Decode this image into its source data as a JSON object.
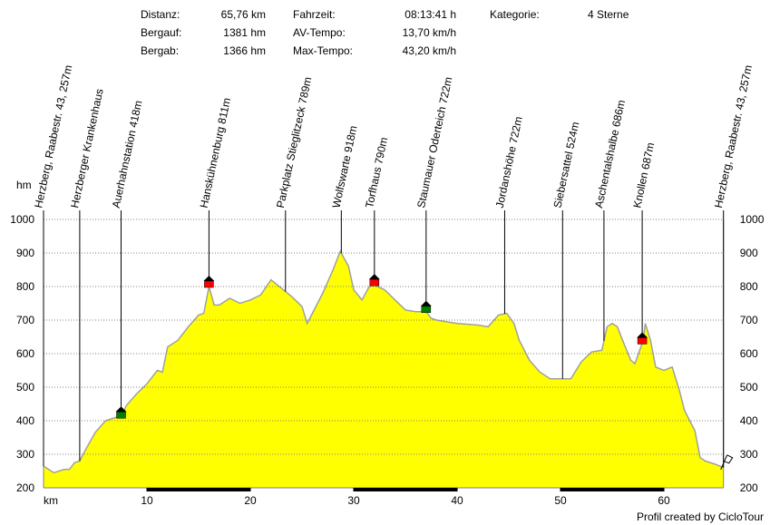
{
  "stats": [
    {
      "label": "Distanz:",
      "value": "65,76 km"
    },
    {
      "label": "Bergauf:",
      "value": "1381 hm"
    },
    {
      "label": "Bergab:",
      "value": "1366 hm"
    },
    {
      "label": "Fahrzeit:",
      "value": "08:13:41 h"
    },
    {
      "label": "AV-Tempo:",
      "value": "13,70 km/h"
    },
    {
      "label": "Max-Tempo:",
      "value": "43,20 km/h"
    },
    {
      "label": "Kategorie:",
      "value": "4 Sterne"
    }
  ],
  "footer": "Profil created by CicloTour",
  "chart_data": {
    "type": "area",
    "color": "#ffff00",
    "y_label": "hm",
    "x_label": "km",
    "xlim": [
      0,
      65.76
    ],
    "ylim": [
      200,
      1000
    ],
    "xticks": [
      10,
      20,
      30,
      40,
      50,
      60
    ],
    "yticks": [
      200,
      300,
      400,
      500,
      600,
      700,
      800,
      900,
      1000
    ],
    "grid": true,
    "x": [
      0,
      1,
      2,
      2.5,
      3,
      3.5,
      4,
      5,
      6,
      7,
      7.5,
      8,
      9,
      10,
      11,
      11.5,
      12,
      13,
      14,
      15,
      15.5,
      16,
      16.5,
      17,
      18,
      19,
      20,
      21,
      22,
      23,
      24,
      25,
      25.5,
      26,
      27,
      28,
      28.7,
      29.5,
      30,
      30.8,
      31.5,
      32,
      33,
      34,
      35,
      36,
      37,
      37.5,
      38,
      40,
      42,
      43,
      44,
      44.8,
      45.5,
      46,
      47,
      48,
      49,
      50,
      51,
      52,
      53,
      54,
      54.5,
      55,
      55.5,
      56,
      56.8,
      57.2,
      58,
      58.2,
      58.7,
      59.2,
      60,
      60.8,
      61.5,
      62,
      62.5,
      63,
      63.5,
      64,
      65,
      65.76
    ],
    "values": [
      265,
      245,
      255,
      255,
      275,
      280,
      310,
      365,
      400,
      410,
      410,
      445,
      480,
      510,
      550,
      545,
      620,
      640,
      680,
      715,
      720,
      800,
      745,
      745,
      765,
      750,
      760,
      775,
      820,
      795,
      770,
      740,
      690,
      720,
      780,
      850,
      905,
      860,
      790,
      760,
      800,
      805,
      790,
      760,
      730,
      725,
      725,
      705,
      700,
      690,
      685,
      680,
      715,
      720,
      690,
      640,
      580,
      545,
      525,
      525,
      525,
      575,
      605,
      610,
      680,
      690,
      680,
      640,
      580,
      570,
      640,
      690,
      640,
      560,
      550,
      560,
      490,
      430,
      400,
      370,
      290,
      280,
      270,
      260
    ],
    "annotations": [
      {
        "label": "Herzberg, Raabestr. 43, 257m",
        "x": 0
      },
      {
        "label": "Herzberger Krankenhaus",
        "x": 3.5
      },
      {
        "label": "Auerhahnstation 418m",
        "x": 7.5,
        "marker": "#008000"
      },
      {
        "label": "Hanskühnenburg 811m",
        "x": 16,
        "marker": "#ff0000"
      },
      {
        "label": "Parkplatz Stieglitzeck 789m",
        "x": 23.4
      },
      {
        "label": "Wolfswarte 918m",
        "x": 28.8
      },
      {
        "label": "Torfhaus 790m",
        "x": 32,
        "marker": "#ff0000"
      },
      {
        "label": "Staumauer Oderteich 722m",
        "x": 37,
        "marker": "#008000"
      },
      {
        "label": "Jordanshöhe 722m",
        "x": 44.6
      },
      {
        "label": "Siebersattel 524m",
        "x": 50.2
      },
      {
        "label": "Aschentalshalbe 686m",
        "x": 54.2
      },
      {
        "label": "Knollen 687m",
        "x": 57.9,
        "marker": "#ff0000"
      },
      {
        "label": "Herzberg, Raabestr. 43, 257m",
        "x": 65.76
      }
    ]
  }
}
